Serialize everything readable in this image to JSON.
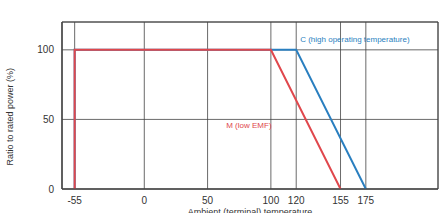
{
  "chart_data": {
    "type": "line",
    "x_label": "Ambient (terminal) temperature",
    "y_label": "Ratio to rated power (%)",
    "xlim": [
      -65,
      232
    ],
    "xticks": [
      -55,
      0,
      50,
      100,
      120,
      155,
      175
    ],
    "ylim": [
      0,
      120
    ],
    "yticks": [
      0,
      50,
      100
    ],
    "grid": true,
    "series": [
      {
        "name": "C (high operating temperature)",
        "color": "#2a7fc0",
        "x": [
          -55,
          -55,
          120,
          175
        ],
        "values": [
          0,
          100,
          100,
          0
        ]
      },
      {
        "name": "M (low EMF)",
        "color": "#e0474c",
        "x": [
          -55,
          -55,
          100,
          155
        ],
        "values": [
          0,
          100,
          100,
          0
        ]
      }
    ]
  }
}
